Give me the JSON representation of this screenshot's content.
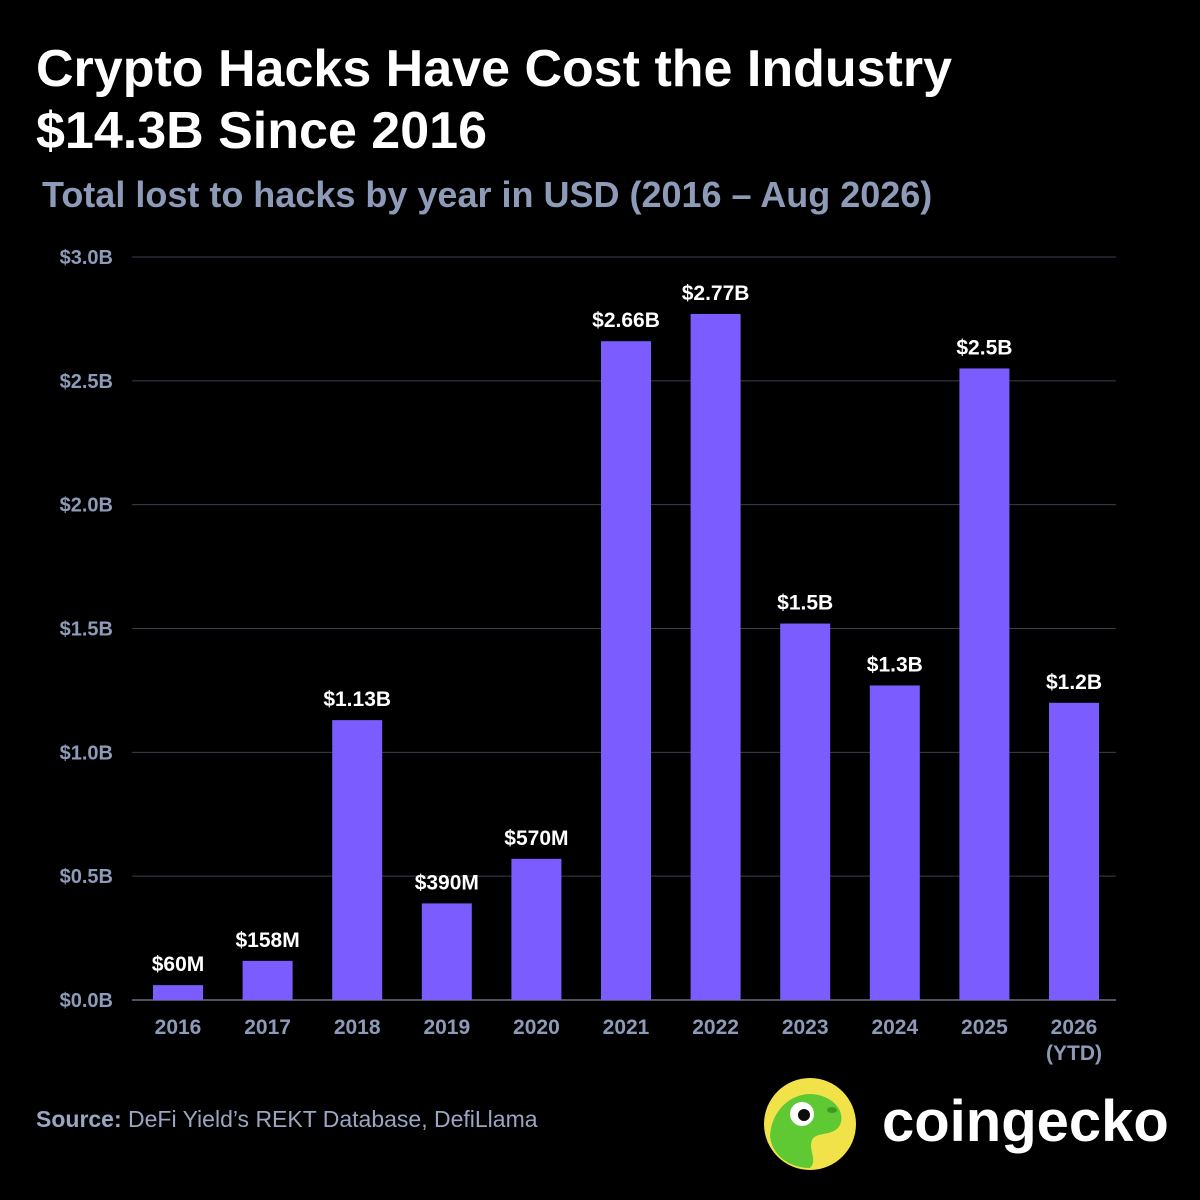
{
  "header": {
    "title_line1": "Crypto Hacks Have Cost the Industry",
    "title_line2": "$14.3B Since 2016",
    "subtitle": "Total lost to hacks by year in USD (2016 – Aug 2026)"
  },
  "footer": {
    "source_label": "Source:",
    "source_text": " DeFi Yield’s REKT Database, DefiLlama",
    "brand_name": "coingecko",
    "brand_icon": "gecko-logo-icon"
  },
  "colors": {
    "background": "#000000",
    "bar": "#7b5cff",
    "grid": "#3a3f4f",
    "axis_text": "#8e9bb8",
    "value_label": "#ffffff",
    "logo_bg": "#f2e24a",
    "logo_gecko": "#5fc934"
  },
  "chart_data": {
    "type": "bar",
    "title": "Crypto Hacks Have Cost the Industry $14.3B Since 2016",
    "subtitle": "Total lost to hacks by year in USD (2016 – Aug 2026)",
    "xlabel": "",
    "ylabel": "",
    "categories": [
      "2016",
      "2017",
      "2018",
      "2019",
      "2020",
      "2021",
      "2022",
      "2023",
      "2024",
      "2025",
      "2026"
    ],
    "category_sublabels": [
      "",
      "",
      "",
      "",
      "",
      "",
      "",
      "",
      "",
      "",
      "(YTD)"
    ],
    "values": [
      0.06,
      0.158,
      1.13,
      0.39,
      0.57,
      2.66,
      2.77,
      1.52,
      1.27,
      2.55,
      1.2
    ],
    "value_labels": [
      "$60M",
      "$158M",
      "$1.13B",
      "$390M",
      "$570M",
      "$2.66B",
      "$2.77B",
      "$1.5B",
      "$1.3B",
      "$2.5B",
      "$1.2B"
    ],
    "yticks": [
      0,
      0.5,
      1.0,
      1.5,
      2.0,
      2.5,
      3.0
    ],
    "ytick_labels": [
      "$0.0B",
      "$0.5B",
      "$1.0B",
      "$1.5B",
      "$2.0B",
      "$2.5B",
      "$3.0B"
    ],
    "ylim": [
      0,
      3.0
    ],
    "grid": true,
    "legend": "none"
  }
}
